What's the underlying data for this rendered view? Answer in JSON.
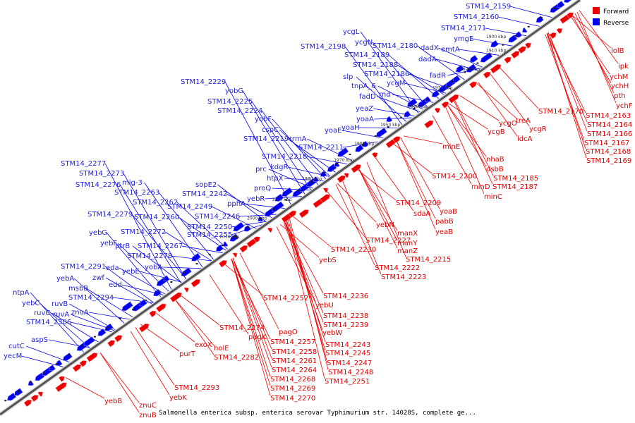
{
  "legend": {
    "forward": "Forward",
    "reverse": "Reverse"
  },
  "colors": {
    "forward": "#ee0000",
    "reverse": "#0000ee",
    "backbone": "#555555"
  },
  "caption": "Salmonella enterica subsp. enterica serovar Typhimurium str. 14028S, complete ge...",
  "ticks": [
    "1900 kbp",
    "1910 kbp",
    "1920 kbp",
    "1930 kbp",
    "1940 kbp",
    "1950 kbp",
    "1960 kbp",
    "1970 kbp",
    "1980 kbp",
    "1990 kbp",
    "2000 kbp",
    "2010 kbp"
  ],
  "reverse_labels": [
    "STM14_2159",
    "STM14_2160",
    "STM14_2171",
    "ymgE",
    "emtA",
    "dadA",
    "dadX",
    "STM14_2180",
    "fadR",
    "ycgL",
    "ycgN",
    "STM14_2198",
    "STM14_2189",
    "STM14_2188",
    "STM14_2186",
    "slp",
    "ycgM",
    "tnpA_6",
    "rnd",
    "fadD",
    "yeaZ",
    "yoaA",
    "yoaH",
    "yoaE",
    "STM14_2229",
    "yobG",
    "STM14_2225",
    "STM14_2224",
    "yobF",
    "cspC",
    "STM14_2219",
    "rrmA",
    "STM14_2211",
    "STM14_2218",
    "kdgR",
    "prc",
    "htpX",
    "proQ",
    "yebR",
    "sopE2",
    "pphA",
    "STM14_2242",
    "STM14_2249",
    "STM14_2246",
    "STM14_2277",
    "STM14_2273",
    "mig-3",
    "STM14_2276",
    "STM14_2263",
    "STM14_2262",
    "STM14_2260",
    "STM14_2250",
    "STM14_2279",
    "STM14_2255",
    "STM14_2272",
    "yebG",
    "yebF",
    "ptrB",
    "STM14_2267",
    "STM14_2278",
    "yobA",
    "STM14_2291",
    "eda",
    "yebE",
    "zwf",
    "edd",
    "msbB",
    "yebA",
    "STM14_2294",
    "ntpA",
    "ruvB",
    "znuA",
    "yebC",
    "ruvC",
    "ruvA",
    "STM14_2306",
    "aspS",
    "cutC",
    "yecM"
  ],
  "forward_labels": [
    "lolB",
    "ipk",
    "ychM",
    "ychH",
    "pth",
    "ychF",
    "STM14_2170",
    "STM14_2163",
    "ycgO",
    "treA",
    "STM14_2164",
    "ycgB",
    "ycgR",
    "STM14_2166",
    "ldcA",
    "STM14_2167",
    "STM14_2168",
    "STM14_2169",
    "nhaB",
    "dsbB",
    "minE",
    "STM14_2200",
    "STM14_2185",
    "minD",
    "STM14_2187",
    "minC",
    "STM14_2209",
    "yoaB",
    "sdaA",
    "pabB",
    "yebN",
    "yeaB",
    "STM14_2227",
    "manX",
    "manY",
    "manZ",
    "STM14_2230",
    "STM14_2215",
    "yebS",
    "STM14_2222",
    "STM14_2223",
    "STM14_2236",
    "STM14_2252",
    "yebU",
    "STM14_2238",
    "STM14_2239",
    "STM14_2274",
    "pagO",
    "yebW",
    "pagK",
    "STM14_2257",
    "STM14_2243",
    "STM14_2258",
    "STM14_2245",
    "holE",
    "exoX",
    "STM14_2282",
    "STM14_2261",
    "STM14_2247",
    "purT",
    "STM14_2264",
    "STM14_2248",
    "STM14_2268",
    "STM14_2251",
    "STM14_2269",
    "STM14_2293",
    "STM14_2270",
    "yebK",
    "yebB",
    "znuC",
    "znuB"
  ]
}
